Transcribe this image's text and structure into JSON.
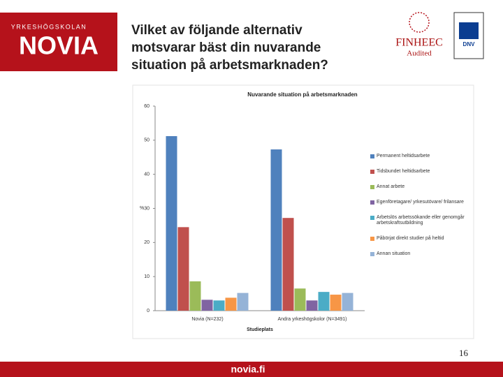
{
  "slide": {
    "title_lines": [
      "Vilket av följande alternativ",
      "motsvarar bäst din nuvarande",
      "situation på arbetsmarknaden?"
    ],
    "logo_top": "YRKESHÖGSKOLAN",
    "logo_main": "NOVIA",
    "finheec": "FINHEEC",
    "audited": "Audited",
    "dnv": "DNV",
    "page_number": 16,
    "footer": "novia.fi"
  },
  "chart_data": {
    "type": "bar",
    "title": "Nuvarande situation på arbetsmarknaden",
    "y_label": "%",
    "x_label": "Studieplats",
    "categories": [
      "Novia (N=232)",
      "Andra yrkeshögskolor (N=3491)"
    ],
    "series": [
      {
        "name": "Permanent heltidsarbete",
        "color": "#4f81bd",
        "values": [
          51.2,
          47.3
        ]
      },
      {
        "name": "Tidsbundet heltidsarbete",
        "color": "#c0504d",
        "values": [
          24.5,
          27.2
        ]
      },
      {
        "name": "Annat arbete",
        "color": "#9bbb59",
        "values": [
          8.6,
          6.5
        ]
      },
      {
        "name": "Egenföretagare/ yrkesutövare/ frilansare",
        "color": "#8064a2",
        "values": [
          3.2,
          3.0
        ]
      },
      {
        "name": "Arbetslös arbetssökande eller genomgår arbetskraftsutbildning",
        "color": "#4bacc6",
        "values": [
          3.0,
          5.5
        ]
      },
      {
        "name": "Påbörjat direkt studier på heltid",
        "color": "#f79646",
        "values": [
          3.8,
          4.7
        ]
      },
      {
        "name": "Annan situation",
        "color": "#95b3d7",
        "values": [
          5.2,
          5.2
        ]
      }
    ],
    "ylim": [
      0,
      60
    ],
    "yticks": [
      0,
      10,
      20,
      30,
      40,
      50,
      60
    ],
    "grid": false
  }
}
